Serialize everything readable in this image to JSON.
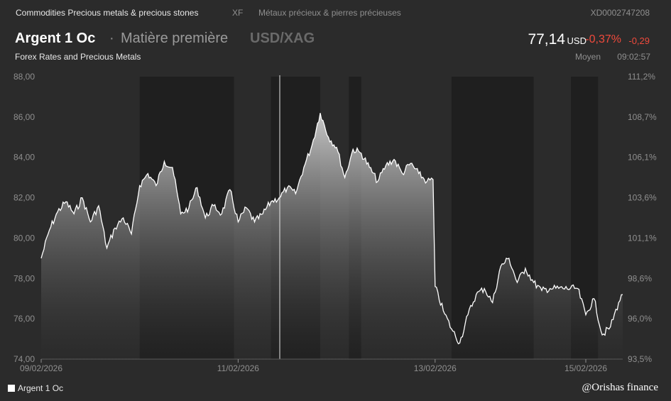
{
  "header": {
    "category": "Commodities Precious metals & precious stones",
    "code": "XF",
    "category_fr": "Métaux précieux & pierres précieuses",
    "isin": "XD0002747208",
    "instrument": "Argent 1 Oc",
    "separator": "·",
    "type": "Matière première",
    "currency_pair": "USD/XAG",
    "source": "Forex Rates and Precious Metals",
    "price": "77,14",
    "price_unit": "USD",
    "change_pct": "-0,37%",
    "change_abs": "-0,29",
    "price_type": "Moyen",
    "time": "09:02:57"
  },
  "colors": {
    "background": "#2b2b2b",
    "band_dark": "#1f1f1f",
    "line": "#ffffff",
    "negative": "#f04a3c",
    "muted": "#8f8f8f"
  },
  "chart_data": {
    "type": "area",
    "xlabel": "",
    "ylabel": "",
    "ylim": [
      74,
      88
    ],
    "y_ticks": [
      "88,00",
      "86,00",
      "84,00",
      "82,00",
      "80,00",
      "78,00",
      "76,00",
      "74,00"
    ],
    "y2_ticks": [
      "111,2%",
      "108,7%",
      "106,1%",
      "103,6%",
      "101,1%",
      "98,6%",
      "96,0%",
      "93,5%"
    ],
    "x_ticks": [
      "09/02/2026",
      "11/02/2026",
      "13/02/2026",
      "15/02/2026"
    ],
    "series": [
      {
        "name": "Argent 1 Oc",
        "points": [
          [
            "09/02 00:00",
            79.0
          ],
          [
            "09/02 02:00",
            80.4
          ],
          [
            "09/02 04:00",
            81.3
          ],
          [
            "09/02 06:00",
            81.8
          ],
          [
            "09/02 08:00",
            81.2
          ],
          [
            "09/02 10:00",
            82.0
          ],
          [
            "09/02 12:00",
            80.8
          ],
          [
            "09/02 14:00",
            81.6
          ],
          [
            "09/02 16:00",
            79.5
          ],
          [
            "09/02 18:00",
            80.5
          ],
          [
            "09/02 20:00",
            81.0
          ],
          [
            "09/02 22:00",
            80.2
          ],
          [
            "10/02 00:00",
            82.6
          ],
          [
            "10/02 02:00",
            83.2
          ],
          [
            "10/02 04:00",
            82.6
          ],
          [
            "10/02 06:00",
            83.8
          ],
          [
            "10/02 08:00",
            83.5
          ],
          [
            "10/02 10:00",
            81.2
          ],
          [
            "10/02 12:00",
            81.5
          ],
          [
            "10/02 14:00",
            82.5
          ],
          [
            "10/02 16:00",
            81.0
          ],
          [
            "10/02 18:00",
            81.6
          ],
          [
            "10/02 20:00",
            81.2
          ],
          [
            "10/02 22:00",
            82.4
          ],
          [
            "11/02 00:00",
            80.8
          ],
          [
            "11/02 02:00",
            81.5
          ],
          [
            "11/02 04:00",
            80.8
          ],
          [
            "11/02 06:00",
            81.2
          ],
          [
            "11/02 08:00",
            81.8
          ],
          [
            "11/02 10:00",
            82.0
          ],
          [
            "11/02 12:00",
            82.5
          ],
          [
            "11/02 14:00",
            82.2
          ],
          [
            "11/02 16:00",
            83.5
          ],
          [
            "11/02 18:00",
            84.6
          ],
          [
            "11/02 20:00",
            86.2
          ],
          [
            "11/02 22:00",
            85.0
          ],
          [
            "12/02 00:00",
            84.5
          ],
          [
            "12/02 02:00",
            83.0
          ],
          [
            "12/02 04:00",
            84.4
          ],
          [
            "12/02 06:00",
            84.2
          ],
          [
            "12/02 08:00",
            83.5
          ],
          [
            "12/02 10:00",
            82.8
          ],
          [
            "12/02 12:00",
            83.6
          ],
          [
            "12/02 14:00",
            83.9
          ],
          [
            "12/02 16:00",
            83.2
          ],
          [
            "12/02 18:00",
            83.7
          ],
          [
            "12/02 20:00",
            83.2
          ],
          [
            "12/02 22:00",
            82.8
          ],
          [
            "12/02 23:30",
            82.9
          ],
          [
            "13/02 00:00",
            77.6
          ],
          [
            "13/02 02:00",
            76.4
          ],
          [
            "13/02 04:00",
            75.5
          ],
          [
            "13/02 06:00",
            74.8
          ],
          [
            "13/02 08:00",
            76.2
          ],
          [
            "13/02 10:00",
            77.2
          ],
          [
            "13/02 12:00",
            77.5
          ],
          [
            "13/02 14:00",
            76.8
          ],
          [
            "13/02 16:00",
            78.6
          ],
          [
            "13/02 18:00",
            79.0
          ],
          [
            "13/02 20:00",
            77.8
          ],
          [
            "13/02 22:00",
            78.5
          ],
          [
            "14/02 00:00",
            77.8
          ],
          [
            "14/02 02:00",
            77.4
          ],
          [
            "14/02 04:00",
            77.5
          ],
          [
            "15/02 22:00",
            77.5
          ],
          [
            "16/02 00:00",
            76.2
          ],
          [
            "16/02 02:00",
            77.0
          ],
          [
            "16/02 04:00",
            75.2
          ],
          [
            "16/02 06:00",
            75.6
          ],
          [
            "16/02 08:00",
            76.8
          ],
          [
            "16/02 09:00",
            77.2
          ]
        ]
      }
    ],
    "bands": [
      [
        "09/02 00:00",
        "10/02 00:00",
        "light"
      ],
      [
        "10/02 00:00",
        "10/02 23:00",
        "dark"
      ],
      [
        "10/02 23:00",
        "11/02 08:00",
        "light"
      ],
      [
        "11/02 08:00",
        "11/02 20:00",
        "dark"
      ],
      [
        "11/02 20:00",
        "12/02 03:00",
        "light"
      ],
      [
        "12/02 03:00",
        "12/02 06:00",
        "dark"
      ],
      [
        "12/02 06:00",
        "13/02 04:00",
        "light"
      ],
      [
        "13/02 04:00",
        "14/02 00:00",
        "dark"
      ],
      [
        "14/02 00:00",
        "15/02 12:00",
        "light"
      ],
      [
        "15/02 12:00",
        "16/02 03:00",
        "dark"
      ],
      [
        "16/02 03:00",
        "16/02 09:00",
        "light"
      ]
    ],
    "legend": "bottom-left",
    "grid": false
  },
  "footer": {
    "legend_label": "Argent 1 Oc",
    "credit": "@Orishas finance"
  }
}
